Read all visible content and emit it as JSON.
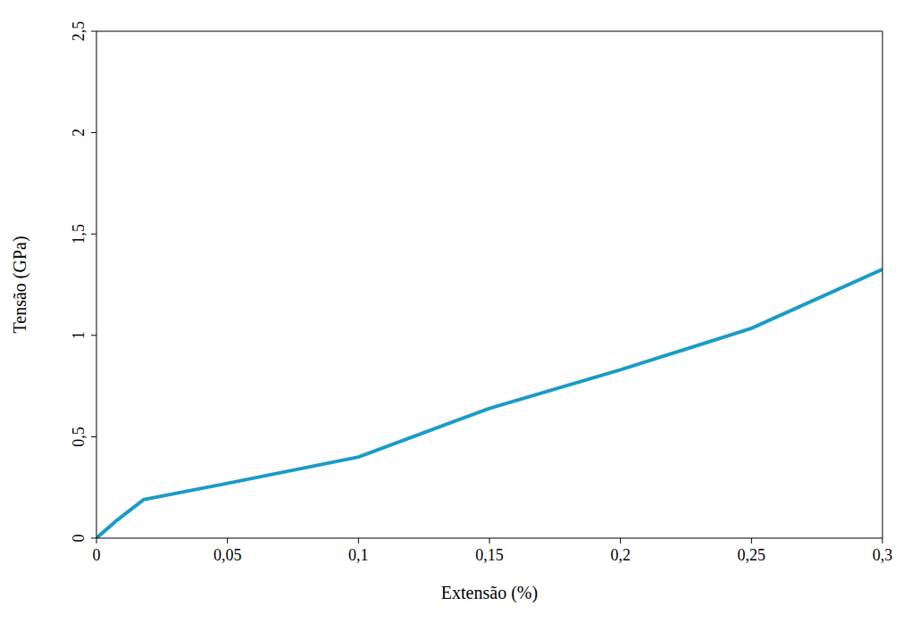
{
  "chart_data": {
    "type": "line",
    "x_label": "Extensão (%)",
    "y_label": "Tensão (GPa)",
    "x": [
      0,
      0.008,
      0.018,
      0.05,
      0.1,
      0.15,
      0.2,
      0.25,
      0.3
    ],
    "values": [
      0,
      0.09,
      0.19,
      0.27,
      0.4,
      0.64,
      0.83,
      1.035,
      1.326
    ],
    "color": "#1a9bc7",
    "xlim": [
      0,
      0.3
    ],
    "ylim": [
      0,
      2.5
    ],
    "xticks": [
      0,
      {
        "value": 0.05,
        "label": "0,05"
      },
      {
        "value": 0.1,
        "label": "0,1"
      },
      {
        "value": 0.15,
        "label": "0,15"
      },
      {
        "value": 0.2,
        "label": "0,2"
      },
      {
        "value": 0.25,
        "label": "0,25"
      },
      {
        "value": 0.3,
        "label": "0,3"
      }
    ],
    "yticks": [
      0,
      {
        "value": 0.5,
        "label": "0,5"
      },
      1,
      {
        "value": 1.5,
        "label": "1,5"
      },
      2,
      {
        "value": 2.5,
        "label": "2,5"
      }
    ],
    "grid": false
  }
}
